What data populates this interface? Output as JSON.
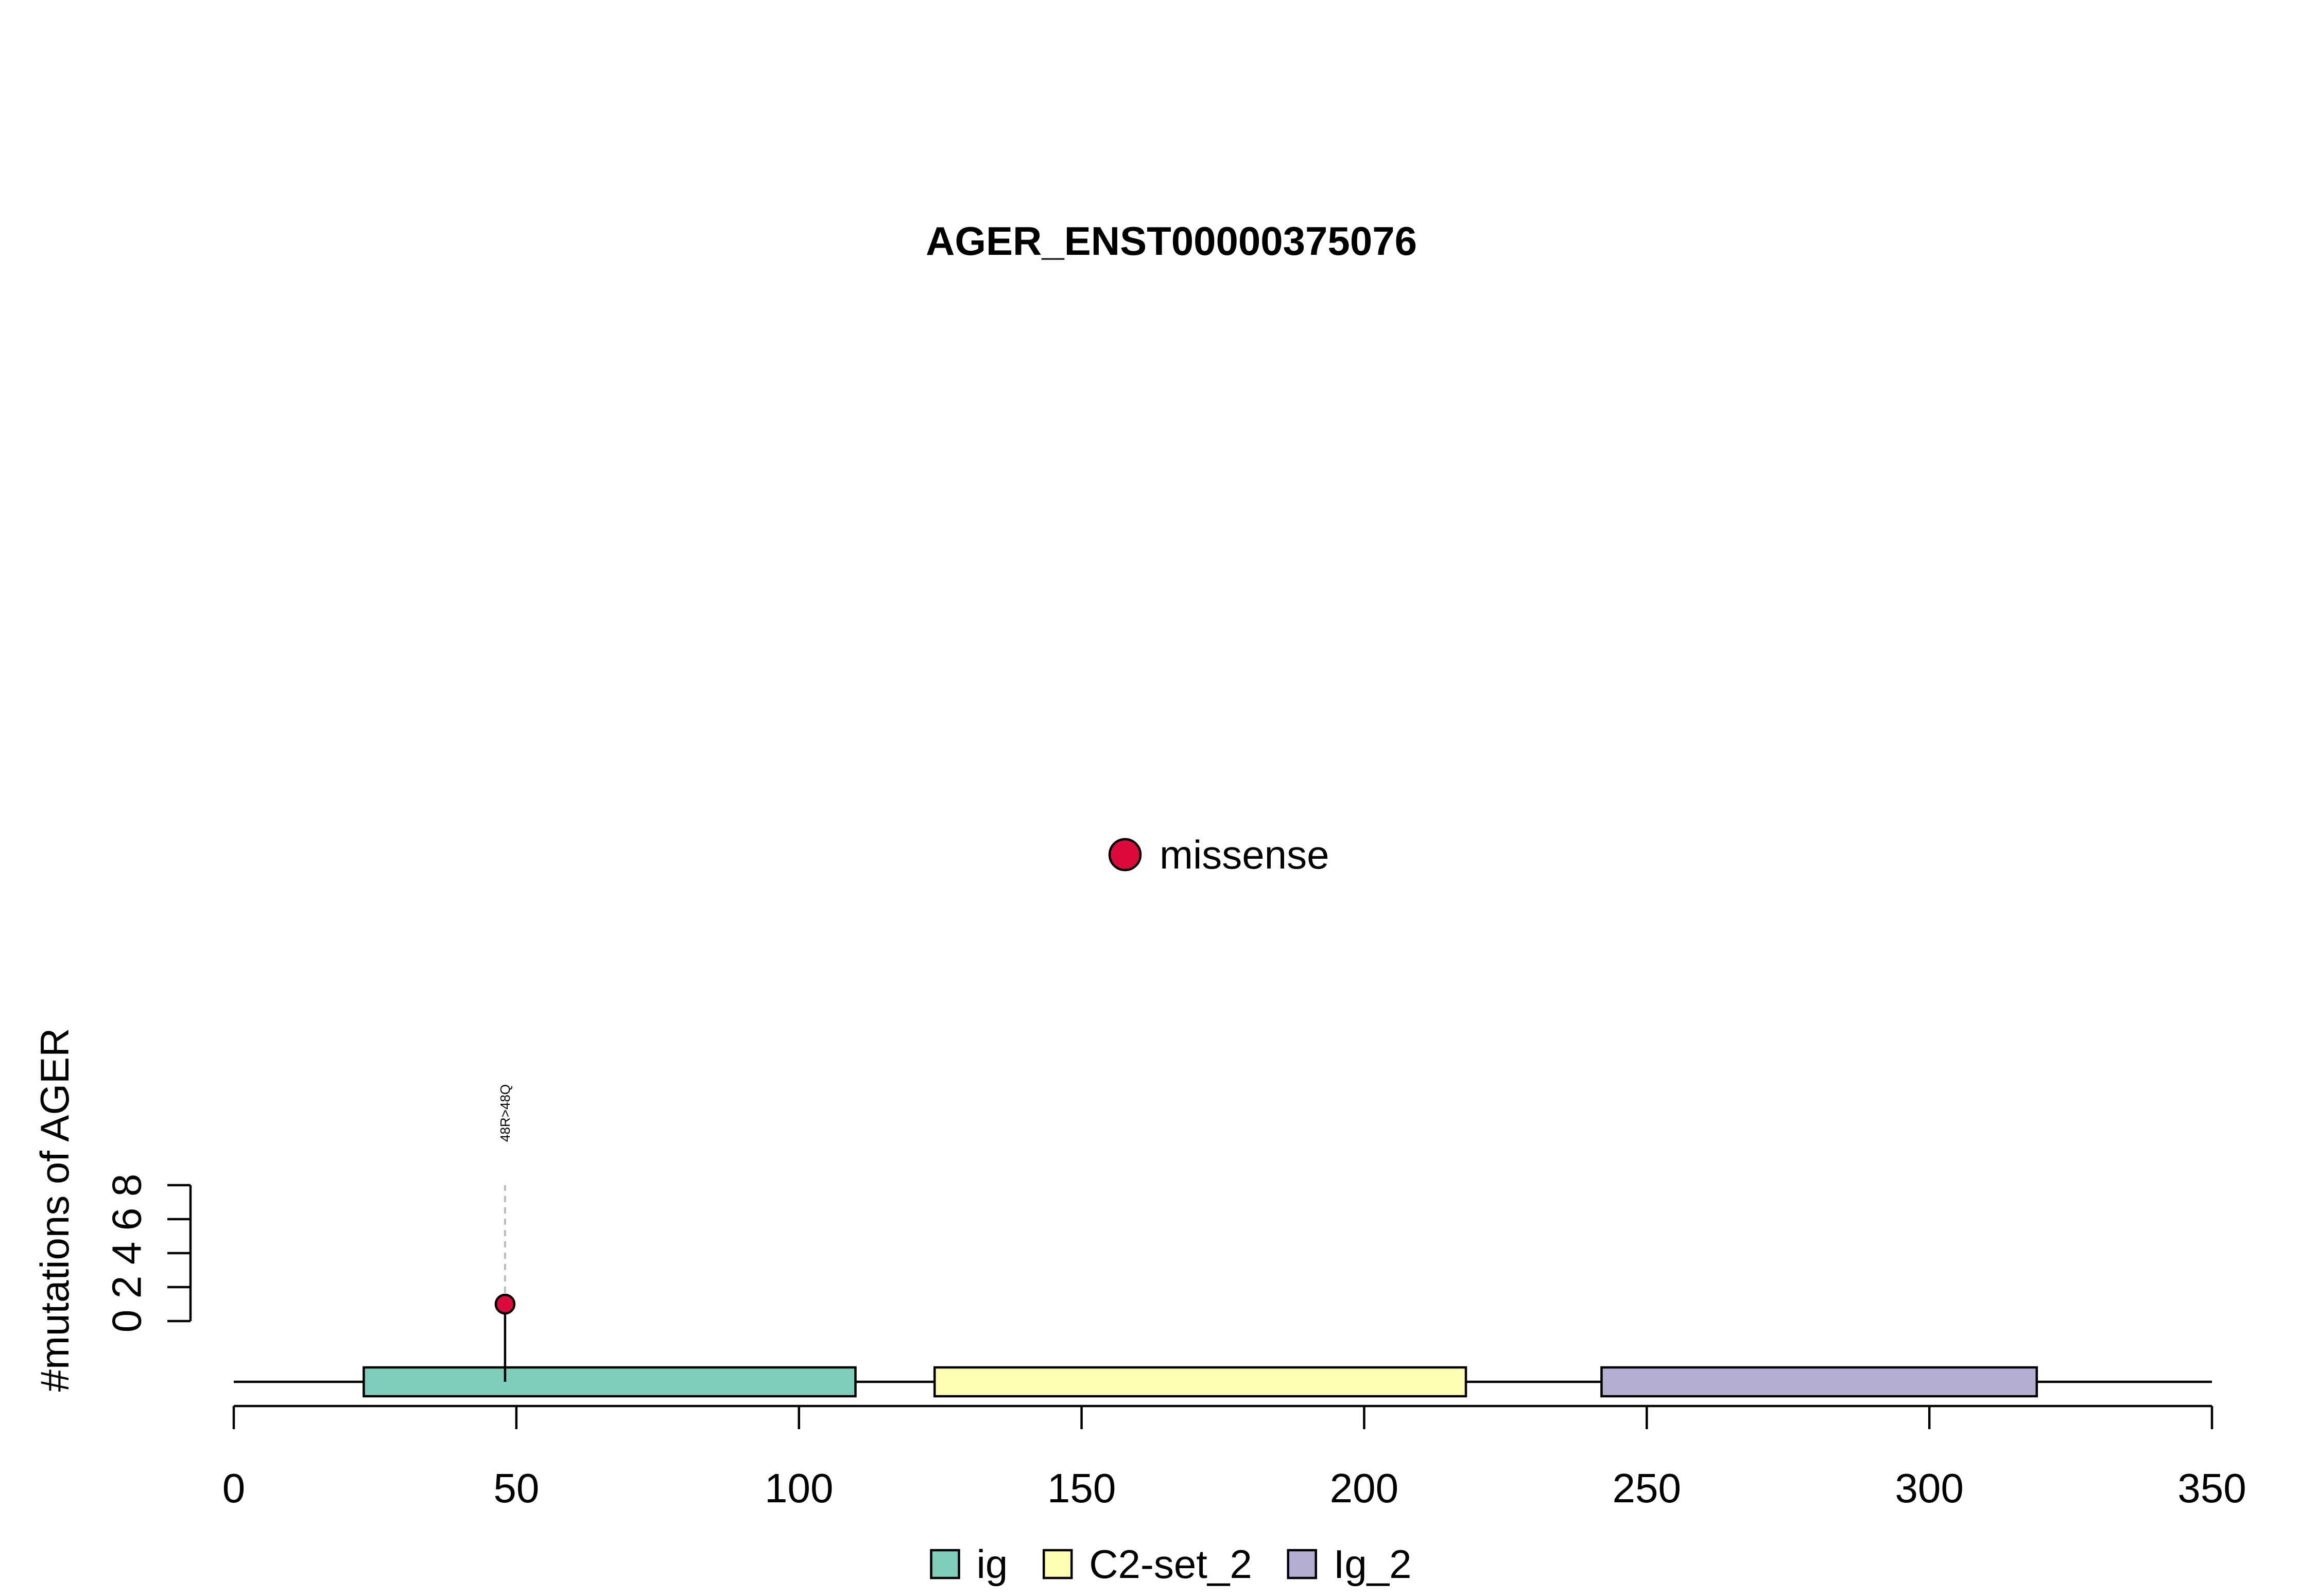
{
  "chart_data": {
    "type": "lollipop",
    "title": "AGER_ENST00000375076",
    "xlabel": "",
    "ylabel": "#mutations of AGER",
    "xlim": [
      0,
      350
    ],
    "x_ticks": [
      0,
      50,
      100,
      150,
      200,
      250,
      300,
      350
    ],
    "y_ticks": [
      0,
      2,
      4,
      6,
      8
    ],
    "ylim": [
      0,
      8
    ],
    "protein_length": 350,
    "domains": [
      {
        "name": "ig",
        "start": 23,
        "end": 110,
        "color": "#7FCDBB"
      },
      {
        "name": "C2-set_2",
        "start": 124,
        "end": 218,
        "color": "#FFFFB3"
      },
      {
        "name": "Ig_2",
        "start": 242,
        "end": 319,
        "color": "#B3AED2"
      }
    ],
    "mutations": [
      {
        "position": 48,
        "count": 1,
        "label": "48R>48Q",
        "type": "missense"
      }
    ],
    "mutation_legend": [
      {
        "name": "missense",
        "color": "#DC0A3C"
      }
    ],
    "legend_position": "bottom"
  }
}
